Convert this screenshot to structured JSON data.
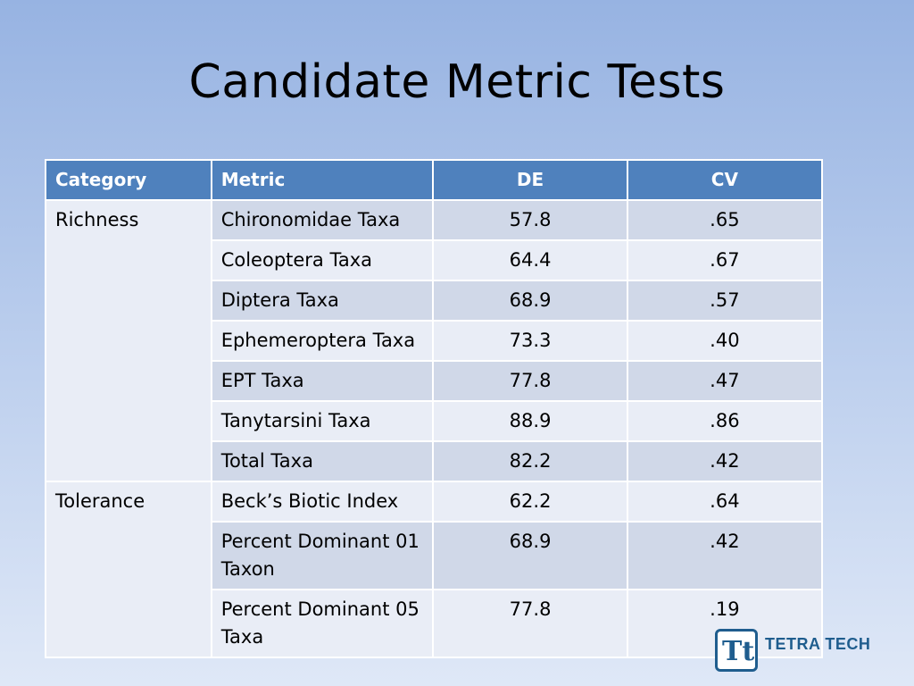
{
  "slide": {
    "title": "Candidate Metric Tests",
    "brand": "TETRA TECH",
    "logo_letters": "Tt"
  },
  "table": {
    "headers": [
      "Category",
      "Metric",
      "DE",
      "CV"
    ],
    "rows": [
      {
        "category": "Richness",
        "metric": "Chironomidae Taxa",
        "de": "57.8",
        "cv": ".65"
      },
      {
        "category": "",
        "metric": "Coleoptera Taxa",
        "de": "64.4",
        "cv": ".67"
      },
      {
        "category": "",
        "metric": "Diptera Taxa",
        "de": "68.9",
        "cv": ".57"
      },
      {
        "category": "",
        "metric": "Ephemeroptera Taxa",
        "de": "73.3",
        "cv": ".40"
      },
      {
        "category": "",
        "metric": "EPT Taxa",
        "de": "77.8",
        "cv": ".47"
      },
      {
        "category": "",
        "metric": "Tanytarsini Taxa",
        "de": "88.9",
        "cv": ".86"
      },
      {
        "category": "",
        "metric": "Total Taxa",
        "de": "82.2",
        "cv": ".42"
      },
      {
        "category": "Tolerance",
        "metric": "Beck’s Biotic Index",
        "de": "62.2",
        "cv": ".64"
      },
      {
        "category": "",
        "metric": "Percent Dominant 01 Taxon",
        "de": "68.9",
        "cv": ".42"
      },
      {
        "category": "",
        "metric": "Percent Dominant 05 Taxa",
        "de": "77.8",
        "cv": ".19"
      }
    ]
  },
  "colors": {
    "header_bg": "#4f81bd",
    "row_dark": "#d0d8e8",
    "row_light": "#e9edf6",
    "brand": "#1f5d8e"
  }
}
